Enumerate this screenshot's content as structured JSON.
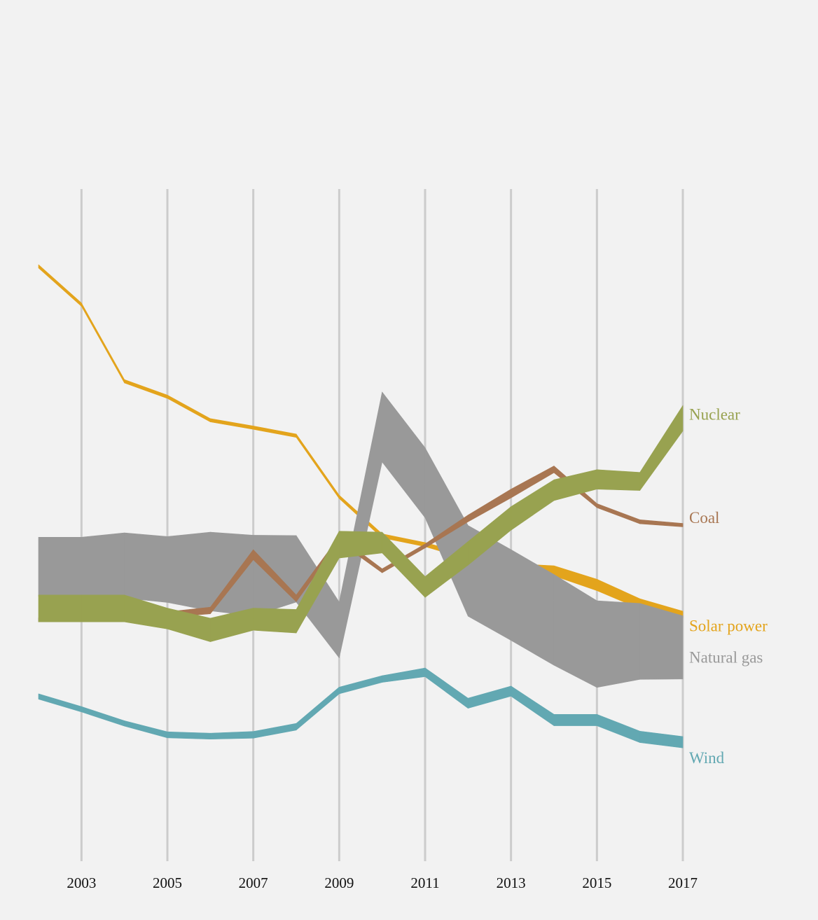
{
  "chart_data": {
    "type": "ribbon",
    "x": [
      2002,
      2003,
      2004,
      2005,
      2006,
      2007,
      2008,
      2009,
      2010,
      2011,
      2012,
      2013,
      2014,
      2015,
      2016,
      2017
    ],
    "xlim": [
      2002,
      2017
    ],
    "xticks": [
      2003,
      2005,
      2007,
      2009,
      2011,
      2013,
      2015,
      2017
    ],
    "ylim": [
      0,
      100
    ],
    "grid": true,
    "series": [
      {
        "name": "Solar power",
        "color": "#e3a41c",
        "values": [
          88.5,
          82.8,
          71.4,
          69.1,
          65.6,
          64.5,
          63.3,
          54.2,
          48.4,
          47.1,
          45.3,
          43.8,
          43.2,
          41.1,
          38.3,
          36.7
        ],
        "widths": [
          0.5,
          0.5,
          0.5,
          0.5,
          0.5,
          0.5,
          0.5,
          0.5,
          0.6,
          0.6,
          0.8,
          1.0,
          1.5,
          1.7,
          1.5,
          1.0
        ]
      },
      {
        "name": "Natural gas",
        "color": "#999999",
        "values": [
          43.8,
          43.8,
          44.0,
          43.4,
          43.1,
          42.5,
          43.5,
          34.4,
          64.6,
          56.3,
          43.2,
          39.6,
          35.9,
          32.3,
          32.7,
          31.8
        ],
        "widths": [
          8.8,
          8.8,
          9.7,
          9.8,
          11.7,
          12.0,
          9.9,
          8.3,
          10.4,
          10.4,
          13.5,
          13.5,
          13.5,
          12.9,
          11.3,
          9.4
        ]
      },
      {
        "name": "Coal",
        "color": "#a87652",
        "values": [
          35.9,
          35.9,
          36.3,
          36.7,
          37.3,
          45.6,
          39.1,
          47.9,
          43.2,
          46.9,
          51.0,
          54.7,
          58.3,
          52.9,
          50.5,
          50.0
        ],
        "widths": [
          0.6,
          0.6,
          0.6,
          0.8,
          1.0,
          1.5,
          1.0,
          0.8,
          0.6,
          0.6,
          1.0,
          1.3,
          1.0,
          0.6,
          0.6,
          0.5
        ]
      },
      {
        "name": "Nuclear",
        "color": "#98a250",
        "values": [
          37.6,
          37.6,
          37.6,
          36.1,
          34.4,
          36.0,
          35.7,
          47.1,
          47.4,
          40.8,
          45.8,
          51.0,
          55.2,
          56.8,
          56.5,
          65.9
        ],
        "widths": [
          4.0,
          4.0,
          4.0,
          3.1,
          3.5,
          3.3,
          3.5,
          4.0,
          3.1,
          3.1,
          3.5,
          3.5,
          3.1,
          2.9,
          2.7,
          3.8
        ]
      },
      {
        "name": "Wind",
        "color": "#62a8b2",
        "values": [
          24.5,
          22.6,
          20.5,
          18.8,
          18.6,
          18.8,
          20.0,
          25.4,
          27.1,
          28.1,
          23.5,
          25.3,
          21.0,
          21.0,
          18.5,
          17.7
        ],
        "widths": [
          0.8,
          0.8,
          0.8,
          0.9,
          0.9,
          1.0,
          1.0,
          1.0,
          1.0,
          1.3,
          1.5,
          1.5,
          1.7,
          1.7,
          1.7,
          1.7
        ]
      }
    ]
  }
}
